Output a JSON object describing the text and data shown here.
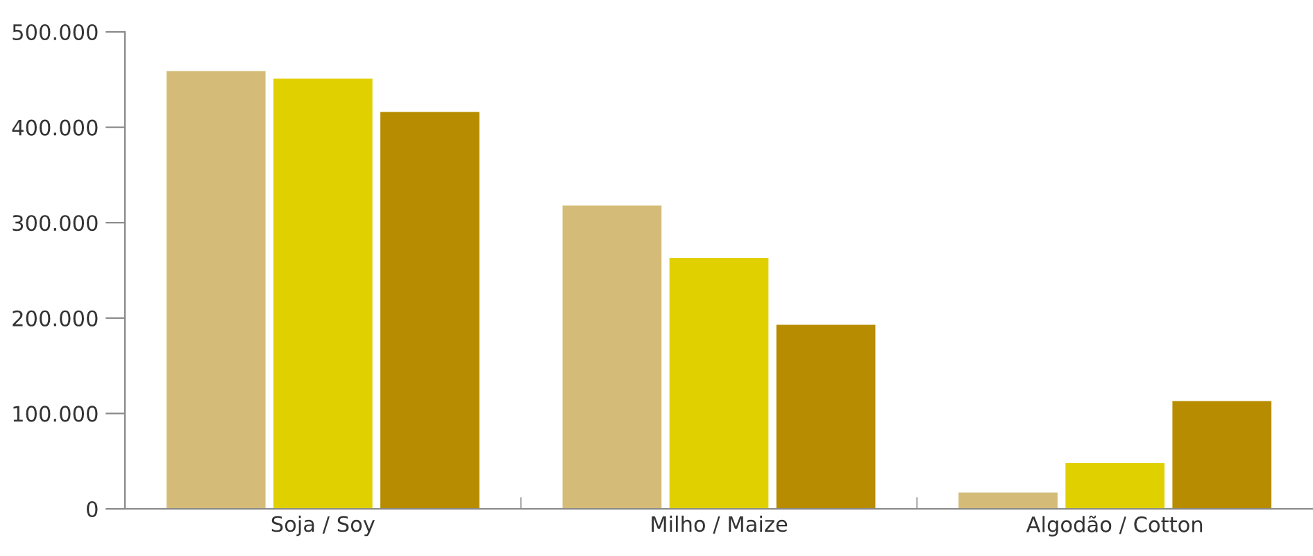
{
  "chart_data": {
    "type": "bar",
    "categories": [
      "Soja / Soy",
      "Milho / Maize",
      "Algodão / Cotton"
    ],
    "series": [
      {
        "color": "#d4bc78",
        "values": [
          459000,
          318000,
          17000
        ]
      },
      {
        "color": "#e0d000",
        "values": [
          451000,
          263000,
          48000
        ]
      },
      {
        "color": "#b78c00",
        "values": [
          416000,
          193000,
          113000
        ]
      }
    ],
    "ylim": [
      0,
      500000
    ],
    "yticks": [
      {
        "value": 0,
        "label": "0"
      },
      {
        "value": 100000,
        "label": "100.000"
      },
      {
        "value": 200000,
        "label": "200.000"
      },
      {
        "value": 300000,
        "label": "300.000"
      },
      {
        "value": 400000,
        "label": "400.000"
      },
      {
        "value": 500000,
        "label": "500.000"
      }
    ],
    "grid": false,
    "legend": false
  }
}
